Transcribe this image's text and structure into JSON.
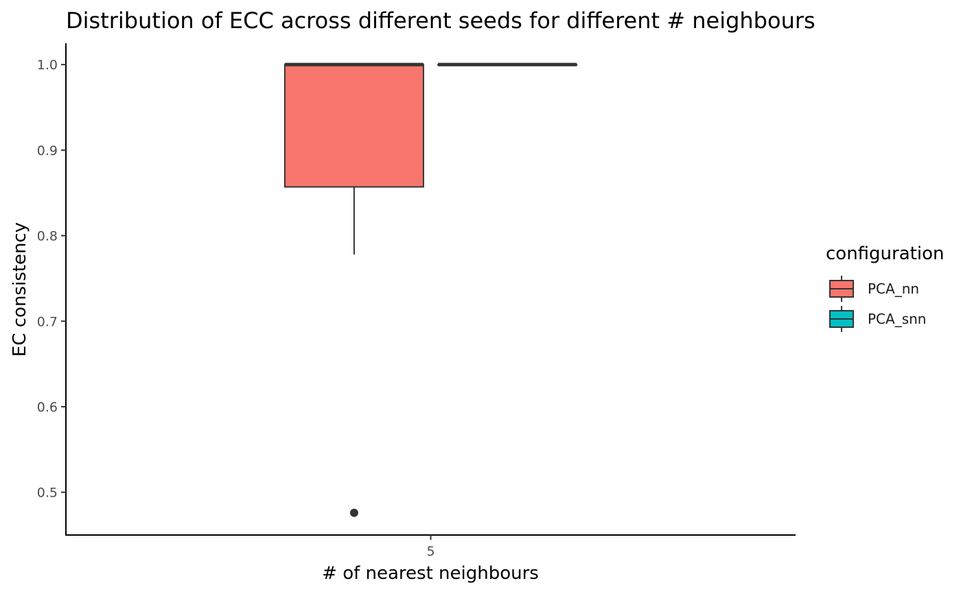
{
  "chart_data": {
    "type": "boxplot",
    "title": "Distribution of ECC across different seeds for different # neighbours",
    "xlabel": "# of nearest neighbours",
    "ylabel": "EC consistency",
    "categories": [
      "5"
    ],
    "ylim": [
      0.45,
      1.025
    ],
    "yticks": [
      0.5,
      0.6,
      0.7,
      0.8,
      0.9,
      1.0
    ],
    "yticklabels": [
      "0.5",
      "0.6",
      "0.7",
      "0.8",
      "0.9",
      "1.0"
    ],
    "grid": false,
    "legend": {
      "title": "configuration",
      "position": "right"
    },
    "series": [
      {
        "name": "PCA_nn",
        "color": "#F8766D",
        "values": [
          {
            "x": "5",
            "min": 0.778,
            "q1": 0.857,
            "median": 1.0,
            "q3": 1.0,
            "max": 1.0,
            "outliers": [
              0.476
            ]
          }
        ]
      },
      {
        "name": "PCA_snn",
        "color": "#00BFC4",
        "values": [
          {
            "x": "5",
            "min": 1.0,
            "q1": 1.0,
            "median": 1.0,
            "q3": 1.0,
            "max": 1.0,
            "outliers": []
          }
        ]
      }
    ]
  }
}
